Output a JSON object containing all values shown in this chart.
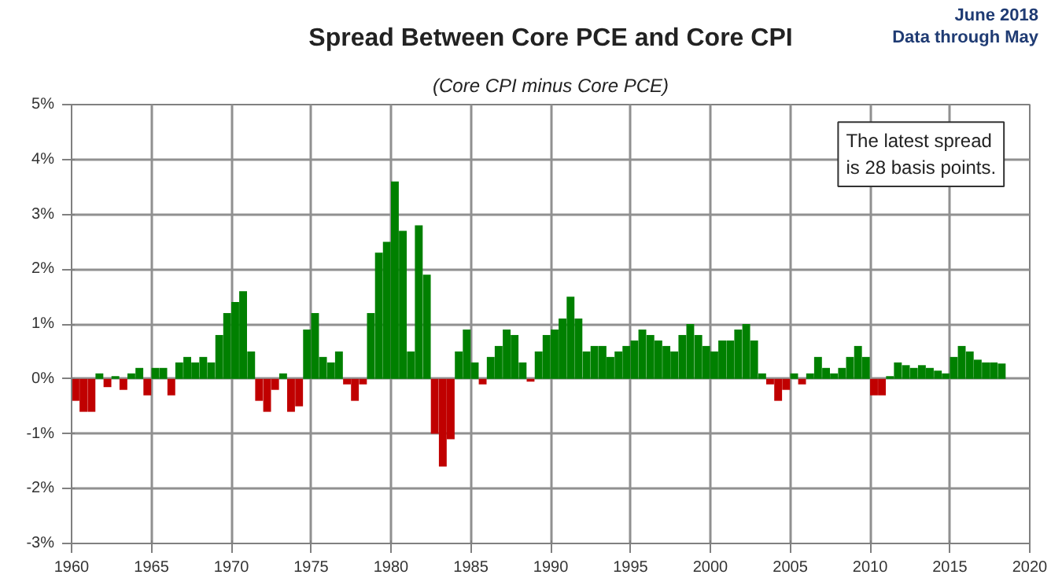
{
  "chart_data": {
    "type": "bar",
    "title": "Spread Between Core PCE and Core CPI",
    "subtitle": "(Core CPI minus Core PCE)",
    "annotations": [
      "June 2018",
      "Data through May",
      "The latest spread\nis 28 basis points."
    ],
    "x": [
      "1960-01",
      "1960-07",
      "1961-01",
      "1961-07",
      "1962-01",
      "1962-07",
      "1963-01",
      "1963-07",
      "1964-01",
      "1964-07",
      "1965-01",
      "1965-07",
      "1966-01",
      "1966-07",
      "1967-01",
      "1967-07",
      "1968-01",
      "1968-07",
      "1969-01",
      "1969-07",
      "1970-01",
      "1970-07",
      "1971-01",
      "1971-07",
      "1972-01",
      "1972-07",
      "1973-01",
      "1973-07",
      "1974-01",
      "1974-07",
      "1975-01",
      "1975-07",
      "1976-01",
      "1976-07",
      "1977-01",
      "1977-07",
      "1978-01",
      "1978-07",
      "1979-01",
      "1979-07",
      "1980-01",
      "1980-07",
      "1981-01",
      "1981-07",
      "1982-01",
      "1982-07",
      "1983-01",
      "1983-07",
      "1984-01",
      "1984-07",
      "1985-01",
      "1985-07",
      "1986-01",
      "1986-07",
      "1987-01",
      "1987-07",
      "1988-01",
      "1988-07",
      "1989-01",
      "1989-07",
      "1990-01",
      "1990-07",
      "1991-01",
      "1991-07",
      "1992-01",
      "1992-07",
      "1993-01",
      "1993-07",
      "1994-01",
      "1994-07",
      "1995-01",
      "1995-07",
      "1996-01",
      "1996-07",
      "1997-01",
      "1997-07",
      "1998-01",
      "1998-07",
      "1999-01",
      "1999-07",
      "2000-01",
      "2000-07",
      "2001-01",
      "2001-07",
      "2002-01",
      "2002-07",
      "2003-01",
      "2003-07",
      "2004-01",
      "2004-07",
      "2005-01",
      "2005-07",
      "2006-01",
      "2006-07",
      "2007-01",
      "2007-07",
      "2008-01",
      "2008-07",
      "2009-01",
      "2009-07",
      "2010-01",
      "2010-07",
      "2011-01",
      "2011-07",
      "2012-01",
      "2012-07",
      "2013-01",
      "2013-07",
      "2014-01",
      "2014-07",
      "2015-01",
      "2015-07",
      "2016-01",
      "2016-07",
      "2017-01",
      "2017-07",
      "2018-01"
    ],
    "values": [
      -0.4,
      -0.6,
      -0.6,
      0.1,
      -0.15,
      0.05,
      -0.2,
      0.1,
      0.2,
      -0.3,
      0.2,
      0.2,
      -0.3,
      0.3,
      0.4,
      0.3,
      0.4,
      0.3,
      0.8,
      1.2,
      1.4,
      1.6,
      0.5,
      -0.4,
      -0.6,
      -0.2,
      0.1,
      -0.6,
      -0.5,
      0.9,
      1.2,
      0.4,
      0.3,
      0.5,
      -0.1,
      -0.4,
      -0.1,
      1.2,
      2.3,
      2.5,
      3.6,
      2.7,
      0.5,
      2.8,
      1.9,
      -1.0,
      -1.6,
      -1.1,
      0.5,
      0.9,
      0.3,
      -0.1,
      0.4,
      0.6,
      0.9,
      0.8,
      0.3,
      -0.05,
      0.5,
      0.8,
      0.9,
      1.1,
      1.5,
      1.1,
      0.5,
      0.6,
      0.6,
      0.4,
      0.5,
      0.6,
      0.7,
      0.9,
      0.8,
      0.7,
      0.6,
      0.5,
      0.8,
      1.0,
      0.8,
      0.6,
      0.5,
      0.7,
      0.7,
      0.9,
      1.0,
      0.7,
      0.1,
      -0.1,
      -0.4,
      -0.2,
      0.1,
      -0.1,
      0.1,
      0.4,
      0.2,
      0.1,
      0.2,
      0.4,
      0.6,
      0.4,
      -0.3,
      -0.3,
      0.05,
      0.3,
      0.25,
      0.2,
      0.25,
      0.2,
      0.15,
      0.1,
      0.4,
      0.6,
      0.5,
      0.35,
      0.3,
      0.3,
      0.28
    ],
    "colors": [
      "#c00000",
      "#c00000",
      "#c00000",
      "#008000",
      "#c00000",
      "#008000",
      "#c00000",
      "#008000",
      "#008000",
      "#c00000",
      "#008000",
      "#008000",
      "#c00000",
      "#008000",
      "#008000",
      "#008000",
      "#008000",
      "#008000",
      "#008000",
      "#008000",
      "#008000",
      "#008000",
      "#008000",
      "#c00000",
      "#c00000",
      "#c00000",
      "#008000",
      "#c00000",
      "#c00000",
      "#008000",
      "#008000",
      "#008000",
      "#008000",
      "#008000",
      "#c00000",
      "#c00000",
      "#c00000",
      "#008000",
      "#008000",
      "#008000",
      "#008000",
      "#008000",
      "#008000",
      "#008000",
      "#008000",
      "#c00000",
      "#c00000",
      "#c00000",
      "#008000",
      "#008000",
      "#008000",
      "#c00000",
      "#008000",
      "#008000",
      "#008000",
      "#008000",
      "#008000",
      "#c00000",
      "#008000",
      "#008000",
      "#008000",
      "#008000",
      "#008000",
      "#008000",
      "#008000",
      "#008000",
      "#008000",
      "#008000",
      "#008000",
      "#008000",
      "#008000",
      "#008000",
      "#008000",
      "#008000",
      "#008000",
      "#008000",
      "#008000",
      "#008000",
      "#008000",
      "#008000",
      "#008000",
      "#008000",
      "#008000",
      "#008000",
      "#008000",
      "#008000",
      "#008000",
      "#c00000",
      "#c00000",
      "#c00000",
      "#008000",
      "#c00000",
      "#008000",
      "#008000",
      "#008000",
      "#008000",
      "#008000",
      "#008000",
      "#008000",
      "#008000",
      "#c00000",
      "#c00000",
      "#008000",
      "#008000",
      "#008000",
      "#008000",
      "#008000",
      "#008000",
      "#008000",
      "#008000",
      "#008000",
      "#008000",
      "#008000",
      "#008000",
      "#008000",
      "#008000",
      "#008000"
    ],
    "xlim": [
      "1960",
      "2020"
    ],
    "xticks": [
      "1960",
      "1965",
      "1970",
      "1975",
      "1980",
      "1985",
      "1990",
      "1995",
      "2000",
      "2005",
      "2010",
      "2015",
      "2020"
    ],
    "ylim": [
      -3,
      5
    ],
    "yticks": [
      {
        "value": -3,
        "label": "-3%"
      },
      {
        "value": -2,
        "label": "-2%"
      },
      {
        "value": -1,
        "label": "-1%"
      },
      {
        "value": 0,
        "label": "0%"
      },
      {
        "value": 1,
        "label": "1%"
      },
      {
        "value": 2,
        "label": "2%"
      },
      {
        "value": 3,
        "label": "3%"
      },
      {
        "value": 4,
        "label": "4%"
      },
      {
        "value": 5,
        "label": "5%"
      }
    ],
    "grid": true
  }
}
